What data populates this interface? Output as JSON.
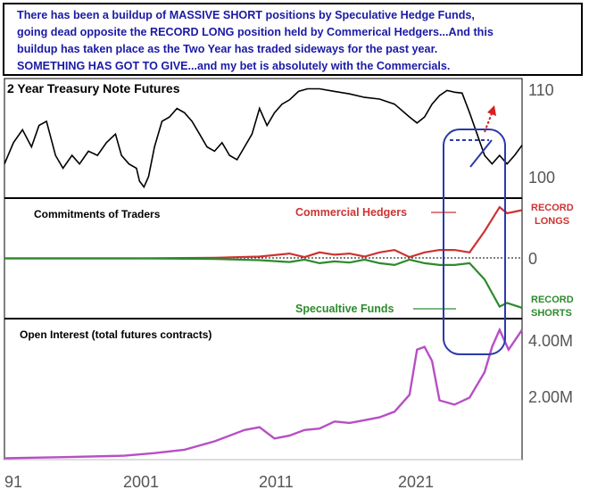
{
  "headline": {
    "lines": [
      "There has been a buildup of MASSIVE SHORT positions by Speculative Hedge Funds,",
      "going dead opposite the RECORD LONG position held by Commerical Hedgers...And this",
      "buildup has taken place as the Two Year has traded sideways for the past year.",
      "SOMETHING HAS GOT TO GIVE...and my bet is absolutely with the Commercials."
    ]
  },
  "chart_data": [
    {
      "type": "line",
      "title": "2 Year Treasury Note Futures",
      "x_ticks": [
        "91",
        "2001",
        "2011",
        "2021"
      ],
      "y_ticks": [
        "110",
        "100"
      ],
      "ylim": [
        98,
        112
      ],
      "series": [
        {
          "color": "#000000",
          "points": [
            [
              1991.0,
              102
            ],
            [
              1991.6,
              104.5
            ],
            [
              1992.2,
              106
            ],
            [
              1992.8,
              104
            ],
            [
              1993.3,
              106.5
            ],
            [
              1993.8,
              107
            ],
            [
              1994.4,
              103
            ],
            [
              1994.9,
              101.5
            ],
            [
              1995.5,
              103
            ],
            [
              1996.0,
              102
            ],
            [
              1996.6,
              103.5
            ],
            [
              1997.2,
              103
            ],
            [
              1997.8,
              104.5
            ],
            [
              1998.4,
              105.5
            ],
            [
              1998.8,
              103
            ],
            [
              1999.3,
              102
            ],
            [
              1999.8,
              101.5
            ],
            [
              2000.0,
              100
            ],
            [
              2000.3,
              99.3
            ],
            [
              2000.6,
              100.5
            ],
            [
              2001.0,
              104
            ],
            [
              2001.5,
              107
            ],
            [
              2002.0,
              107.5
            ],
            [
              2002.5,
              108.5
            ],
            [
              2003.0,
              108
            ],
            [
              2003.5,
              107
            ],
            [
              2004.0,
              105.5
            ],
            [
              2004.5,
              104
            ],
            [
              2005.0,
              103.5
            ],
            [
              2005.5,
              104.5
            ],
            [
              2006.0,
              103
            ],
            [
              2006.5,
              102.5
            ],
            [
              2007.0,
              104
            ],
            [
              2007.5,
              105.5
            ],
            [
              2008.0,
              108.5
            ],
            [
              2008.5,
              106.5
            ],
            [
              2009.0,
              108
            ],
            [
              2009.5,
              109
            ],
            [
              2010.0,
              109.5
            ],
            [
              2010.6,
              110.5
            ],
            [
              2011.2,
              110.8
            ],
            [
              2012.0,
              110.8
            ],
            [
              2013.0,
              110.5
            ],
            [
              2014.0,
              110.2
            ],
            [
              2015.0,
              109.8
            ],
            [
              2016.0,
              109.6
            ],
            [
              2017.0,
              109
            ],
            [
              2018.0,
              107.5
            ],
            [
              2018.5,
              106.8
            ],
            [
              2019.0,
              107.5
            ],
            [
              2019.5,
              109
            ],
            [
              2020.0,
              110
            ],
            [
              2020.5,
              110.6
            ],
            [
              2021.0,
              110.4
            ],
            [
              2021.5,
              110.3
            ],
            [
              2022.0,
              108
            ],
            [
              2022.5,
              105.5
            ],
            [
              2023.0,
              103
            ],
            [
              2023.5,
              102
            ],
            [
              2024.0,
              103
            ],
            [
              2024.5,
              102
            ],
            [
              2025.0,
              103
            ],
            [
              2025.5,
              104.2
            ]
          ]
        }
      ]
    },
    {
      "type": "line",
      "title": "Commitments of Traders",
      "y_ticks": [
        "0"
      ],
      "ylim": [
        -1,
        1
      ],
      "annotations": [
        "RECORD LONGS",
        "RECORD SHORTS"
      ],
      "series": [
        {
          "name": "Commercial Hedgers",
          "color": "#cc3333",
          "points": [
            [
              1991,
              0
            ],
            [
              2000,
              0
            ],
            [
              2005,
              0.01
            ],
            [
              2008,
              0.03
            ],
            [
              2010,
              0.08
            ],
            [
              2011,
              0.02
            ],
            [
              2012,
              0.1
            ],
            [
              2013,
              0.06
            ],
            [
              2014,
              0.08
            ],
            [
              2015,
              0.03
            ],
            [
              2016,
              0.1
            ],
            [
              2017,
              0.14
            ],
            [
              2018,
              0.02
            ],
            [
              2019,
              0.1
            ],
            [
              2020,
              0.14
            ],
            [
              2021,
              0.14
            ],
            [
              2022,
              0.1
            ],
            [
              2023,
              0.45
            ],
            [
              2024,
              0.85
            ],
            [
              2024.5,
              0.75
            ],
            [
              2025.5,
              0.8
            ]
          ]
        },
        {
          "name": "Specualtive Funds",
          "color": "#2d8a2d",
          "points": [
            [
              1991,
              0
            ],
            [
              2000,
              0
            ],
            [
              2005,
              -0.01
            ],
            [
              2008,
              -0.03
            ],
            [
              2010,
              -0.06
            ],
            [
              2011,
              -0.02
            ],
            [
              2012,
              -0.08
            ],
            [
              2013,
              -0.05
            ],
            [
              2014,
              -0.07
            ],
            [
              2015,
              -0.02
            ],
            [
              2016,
              -0.08
            ],
            [
              2017,
              -0.11
            ],
            [
              2018,
              -0.02
            ],
            [
              2019,
              -0.08
            ],
            [
              2020,
              -0.11
            ],
            [
              2021,
              -0.11
            ],
            [
              2022,
              -0.08
            ],
            [
              2023,
              -0.35
            ],
            [
              2024,
              -0.8
            ],
            [
              2024.5,
              -0.74
            ],
            [
              2025.5,
              -0.82
            ]
          ]
        }
      ]
    },
    {
      "type": "line",
      "title": "Open Interest (total futures contracts)",
      "x_ticks": [
        "91",
        "2001",
        "2011",
        "2021"
      ],
      "y_ticks": [
        "4.00M",
        "2.00M"
      ],
      "ylim": [
        0,
        5000000
      ],
      "series": [
        {
          "color": "#b74fc4",
          "points": [
            [
              1991,
              50000
            ],
            [
              1995,
              90000
            ],
            [
              1999,
              140000
            ],
            [
              2001,
              230000
            ],
            [
              2003,
              350000
            ],
            [
              2005,
              650000
            ],
            [
              2007,
              1050000
            ],
            [
              2008,
              1150000
            ],
            [
              2009,
              750000
            ],
            [
              2010,
              850000
            ],
            [
              2011,
              1050000
            ],
            [
              2012,
              1100000
            ],
            [
              2013,
              1350000
            ],
            [
              2014,
              1300000
            ],
            [
              2015,
              1400000
            ],
            [
              2016,
              1500000
            ],
            [
              2017,
              1700000
            ],
            [
              2018,
              2300000
            ],
            [
              2018.5,
              3900000
            ],
            [
              2019,
              4000000
            ],
            [
              2019.5,
              3500000
            ],
            [
              2020,
              2100000
            ],
            [
              2021,
              1950000
            ],
            [
              2022,
              2200000
            ],
            [
              2023,
              3100000
            ],
            [
              2023.5,
              4000000
            ],
            [
              2024,
              4600000
            ],
            [
              2024.6,
              3900000
            ],
            [
              2025.5,
              4600000
            ]
          ]
        }
      ]
    }
  ]
}
